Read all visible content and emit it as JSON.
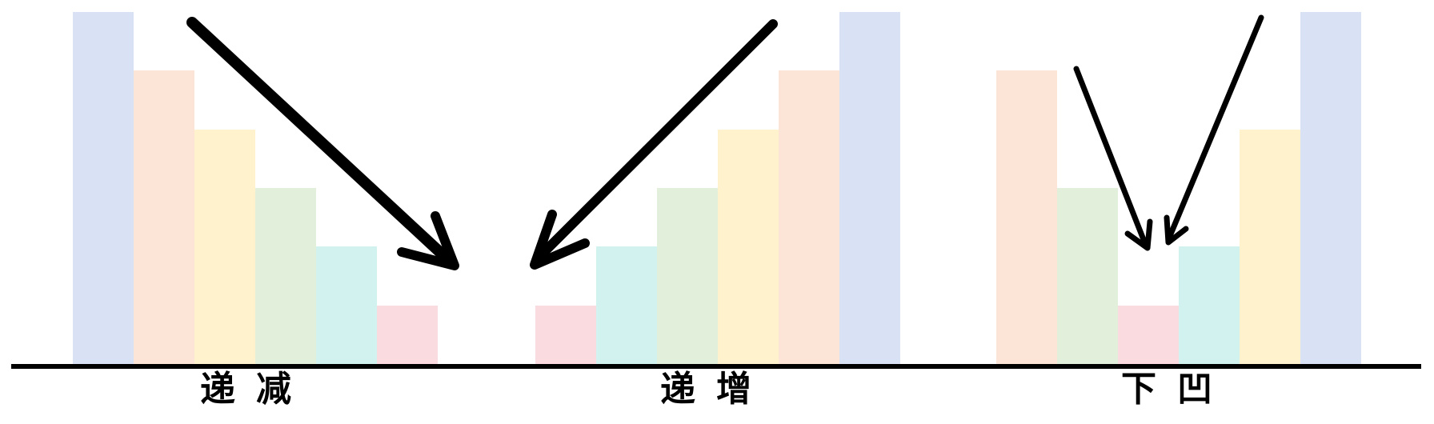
{
  "groups": [
    {
      "id": "decreasing",
      "label": "递减",
      "bars": [
        {
          "level": 1.0,
          "color": "#d9e1f4"
        },
        {
          "level": 0.833,
          "color": "#fce4d6"
        },
        {
          "level": 0.667,
          "color": "#fff2cc"
        },
        {
          "level": 0.5,
          "color": "#e2efda"
        },
        {
          "level": 0.333,
          "color": "#d2f2f0"
        },
        {
          "level": 0.167,
          "color": "#f9dbe0"
        }
      ]
    },
    {
      "id": "increasing",
      "label": "递增",
      "bars": [
        {
          "level": 0.167,
          "color": "#f9dbe0"
        },
        {
          "level": 0.333,
          "color": "#d2f2f0"
        },
        {
          "level": 0.5,
          "color": "#e2efda"
        },
        {
          "level": 0.667,
          "color": "#fff2cc"
        },
        {
          "level": 0.833,
          "color": "#fce4d6"
        },
        {
          "level": 1.0,
          "color": "#d9e1f4"
        }
      ]
    },
    {
      "id": "concave",
      "label": "下凹",
      "bars": [
        {
          "level": 0.833,
          "color": "#fce4d6"
        },
        {
          "level": 0.5,
          "color": "#e2efda"
        },
        {
          "level": 0.167,
          "color": "#f9dbe0"
        },
        {
          "level": 0.333,
          "color": "#d2f2f0"
        },
        {
          "level": 0.667,
          "color": "#fff2cc"
        },
        {
          "level": 1.0,
          "color": "#d9e1f4"
        }
      ]
    }
  ],
  "arrow_color": "#000000"
}
